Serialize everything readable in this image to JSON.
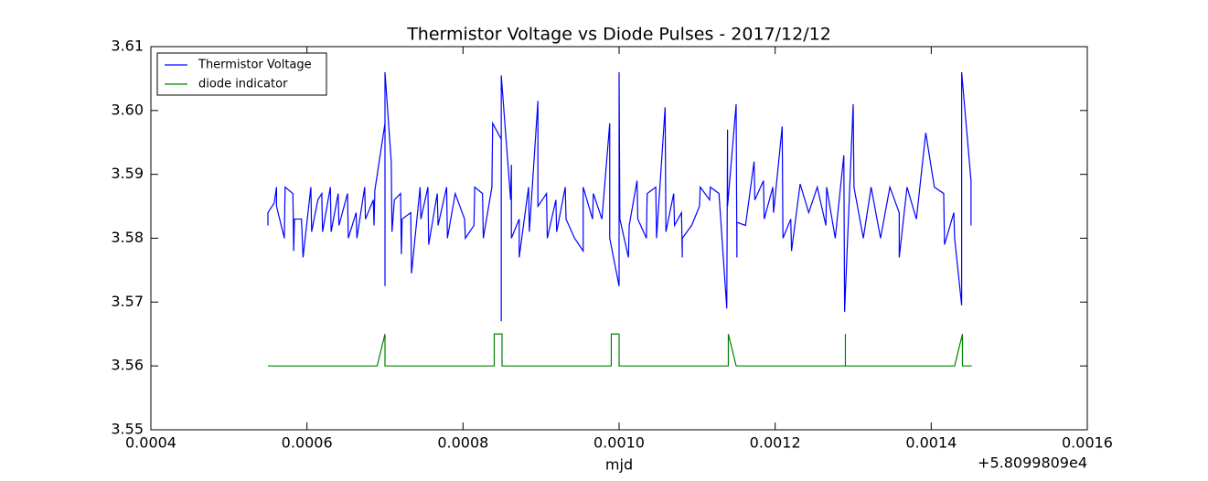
{
  "chart_data": {
    "type": "line",
    "title": "Thermistor Voltage vs Diode Pulses - 2017/12/12",
    "x_label": "mjd",
    "x_offset_label": "+5.8099809e4",
    "xlim": [
      0.0004,
      0.0016
    ],
    "xticks": [
      0.0004,
      0.0006,
      0.0008,
      {
        "value": 0.001,
        "label": "0.0010"
      },
      0.0012,
      0.0014,
      0.0016
    ],
    "ylim": [
      3.55,
      3.61
    ],
    "yticks": [
      3.55,
      3.56,
      3.57,
      3.58,
      3.59,
      {
        "value": 3.6,
        "label": "3.60"
      },
      3.61
    ],
    "legend": "upper left",
    "series": [
      {
        "name": "Thermistor Voltage",
        "color": "#0000ff",
        "x": [
          0.00055,
          0.00055,
          0.000558,
          0.000561,
          0.000561,
          0.000571,
          0.000572,
          0.000582,
          0.000583,
          0.000584,
          0.000593,
          0.000595,
          0.000605,
          0.000606,
          0.000614,
          0.000619,
          0.00062,
          0.00063,
          0.000631,
          0.00064,
          0.000641,
          0.000652,
          0.000653,
          0.000663,
          0.000664,
          0.000674,
          0.000675,
          0.000685,
          0.000686,
          0.000687,
          0.0007,
          0.0007,
          0.0007,
          0.000708,
          0.000709,
          0.000712,
          0.00072,
          0.000721,
          0.000722,
          0.000733,
          0.000734,
          0.000745,
          0.000746,
          0.000755,
          0.000756,
          0.000767,
          0.000768,
          0.000779,
          0.00078,
          0.00079,
          0.000802,
          0.000803,
          0.000814,
          0.000815,
          0.000825,
          0.000826,
          0.000837,
          0.000838,
          0.000849,
          0.000849,
          0.000849,
          0.000861,
          0.000862,
          0.000862,
          0.000872,
          0.000872,
          0.000884,
          0.000885,
          0.000896,
          0.000896,
          0.000907,
          0.000908,
          0.000919,
          0.00092,
          0.000931,
          0.000932,
          0.000943,
          0.000954,
          0.000954,
          0.000966,
          0.000967,
          0.000978,
          0.000988,
          0.000988,
          0.001,
          0.001,
          0.001001,
          0.001012,
          0.001013,
          0.001023,
          0.001024,
          0.001035,
          0.001036,
          0.001047,
          0.001048,
          0.001059,
          0.00106,
          0.00107,
          0.001071,
          0.00108,
          0.001081,
          0.001081,
          0.001093,
          0.001103,
          0.001104,
          0.001116,
          0.001117,
          0.001128,
          0.001138,
          0.001139,
          0.001139,
          0.00115,
          0.001151,
          0.001151,
          0.001162,
          0.001173,
          0.001174,
          0.001185,
          0.001186,
          0.001197,
          0.001198,
          0.001209,
          0.00121,
          0.00122,
          0.001221,
          0.001232,
          0.001243,
          0.001254,
          0.001265,
          0.001266,
          0.001277,
          0.001288,
          0.001289,
          0.0013,
          0.001301,
          0.001313,
          0.001323,
          0.001335,
          0.001347,
          0.001359,
          0.001359,
          0.001369,
          0.001381,
          0.001393,
          0.001404,
          0.001416,
          0.001417,
          0.001429,
          0.00143,
          0.001439,
          0.001439,
          0.001451,
          0.001451
        ],
        "values": [
          3.582,
          3.584,
          3.5855,
          3.588,
          3.585,
          3.58,
          3.588,
          3.587,
          3.578,
          3.583,
          3.583,
          3.577,
          3.588,
          3.581,
          3.586,
          3.587,
          3.581,
          3.588,
          3.581,
          3.587,
          3.582,
          3.587,
          3.58,
          3.584,
          3.58,
          3.588,
          3.583,
          3.586,
          3.582,
          3.5875,
          3.598,
          3.5725,
          3.606,
          3.592,
          3.581,
          3.586,
          3.587,
          3.5775,
          3.583,
          3.584,
          3.5745,
          3.588,
          3.583,
          3.588,
          3.579,
          3.587,
          3.582,
          3.588,
          3.58,
          3.587,
          3.583,
          3.58,
          3.582,
          3.588,
          3.587,
          3.58,
          3.588,
          3.598,
          3.5955,
          3.567,
          3.6055,
          3.586,
          3.5915,
          3.58,
          3.583,
          3.577,
          3.588,
          3.581,
          3.6015,
          3.585,
          3.587,
          3.58,
          3.586,
          3.581,
          3.588,
          3.583,
          3.58,
          3.578,
          3.588,
          3.583,
          3.587,
          3.583,
          3.598,
          3.58,
          3.5725,
          3.606,
          3.583,
          3.577,
          3.582,
          3.589,
          3.583,
          3.58,
          3.587,
          3.588,
          3.58,
          3.6005,
          3.581,
          3.587,
          3.582,
          3.584,
          3.577,
          3.58,
          3.582,
          3.585,
          3.588,
          3.586,
          3.588,
          3.587,
          3.569,
          3.597,
          3.585,
          3.601,
          3.577,
          3.5825,
          3.582,
          3.592,
          3.586,
          3.589,
          3.583,
          3.588,
          3.584,
          3.5975,
          3.58,
          3.583,
          3.578,
          3.5885,
          3.584,
          3.588,
          3.582,
          3.588,
          3.58,
          3.593,
          3.5685,
          3.601,
          3.588,
          3.58,
          3.588,
          3.58,
          3.588,
          3.584,
          3.577,
          3.588,
          3.583,
          3.5965,
          3.588,
          3.587,
          3.579,
          3.584,
          3.58,
          3.5695,
          3.606,
          3.589,
          3.582
        ]
      },
      {
        "name": "diode indicator",
        "color": "#008000",
        "x": [
          0.00055,
          0.00069,
          0.0007,
          0.0007,
          0.00084,
          0.00084,
          0.00085,
          0.00085,
          0.00099,
          0.00099,
          0.001,
          0.001,
          0.00114,
          0.00114,
          0.00115,
          0.00129,
          0.00129,
          0.00129,
          0.00143,
          0.00144,
          0.00144,
          0.001452
        ],
        "values": [
          3.56,
          3.56,
          3.565,
          3.56,
          3.56,
          3.565,
          3.565,
          3.56,
          3.56,
          3.565,
          3.565,
          3.56,
          3.56,
          3.565,
          3.56,
          3.56,
          3.565,
          3.56,
          3.56,
          3.565,
          3.56,
          3.56
        ]
      }
    ]
  }
}
